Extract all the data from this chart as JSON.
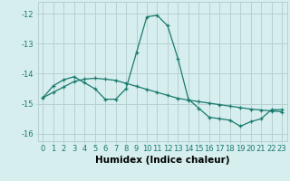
{
  "xlabel": "Humidex (Indice chaleur)",
  "bg_color": "#d6eeee",
  "grid_color": "#b8d0d0",
  "line_color": "#1a7a6e",
  "xlim": [
    -0.5,
    23.5
  ],
  "ylim": [
    -16.25,
    -11.6
  ],
  "xticks": [
    0,
    1,
    2,
    3,
    4,
    5,
    6,
    7,
    8,
    9,
    10,
    11,
    12,
    13,
    14,
    15,
    16,
    17,
    18,
    19,
    20,
    21,
    22,
    23
  ],
  "yticks": [
    -16,
    -15,
    -14,
    -13,
    -12
  ],
  "line1_x": [
    0,
    1,
    2,
    3,
    4,
    5,
    6,
    7,
    8,
    9,
    10,
    11,
    12,
    13,
    14,
    15,
    16,
    17,
    18,
    19,
    20,
    21,
    22,
    23
  ],
  "line1_y": [
    -14.8,
    -14.4,
    -14.2,
    -14.1,
    -14.3,
    -14.5,
    -14.85,
    -14.85,
    -14.5,
    -13.3,
    -12.1,
    -12.05,
    -12.4,
    -13.5,
    -14.85,
    -15.15,
    -15.45,
    -15.5,
    -15.55,
    -15.75,
    -15.6,
    -15.5,
    -15.2,
    -15.2
  ],
  "line2_x": [
    0,
    1,
    2,
    3,
    4,
    5,
    6,
    7,
    8,
    9,
    10,
    11,
    12,
    13,
    14,
    15,
    16,
    17,
    18,
    19,
    20,
    21,
    22,
    23
  ],
  "line2_y": [
    -14.8,
    -14.62,
    -14.44,
    -14.26,
    -14.18,
    -14.15,
    -14.18,
    -14.22,
    -14.32,
    -14.42,
    -14.52,
    -14.62,
    -14.72,
    -14.82,
    -14.88,
    -14.93,
    -14.98,
    -15.03,
    -15.08,
    -15.13,
    -15.18,
    -15.21,
    -15.24,
    -15.27
  ],
  "tick_fontsize": 6.0,
  "xlabel_fontsize": 7.5,
  "xlabel_fontweight": "bold"
}
